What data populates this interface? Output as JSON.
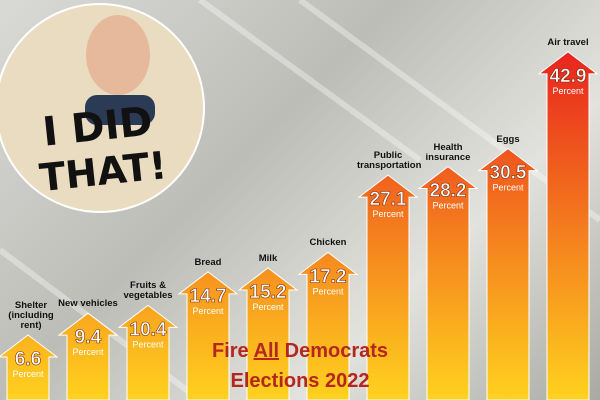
{
  "chart_data": {
    "type": "arrow",
    "categories": [
      "Shelter (including rent)",
      "New vehicles",
      "Fruits & vegetables",
      "Bread",
      "Milk",
      "Chicken",
      "Public transportation",
      "Health insurance",
      "Eggs",
      "Air travel"
    ],
    "values": [
      6.6,
      9.4,
      10.4,
      14.7,
      15.2,
      17.2,
      27.1,
      28.2,
      30.5,
      42.9
    ],
    "value_unit": "Percent",
    "top_color": "#e8231e",
    "bottom_color": "#ffd21f"
  },
  "caption": [
    "I DID",
    "THAT!"
  ],
  "slogan": {
    "before": "Fire",
    "emphasis": "All",
    "after": "Democrats",
    "line2": "Elections 2022"
  }
}
